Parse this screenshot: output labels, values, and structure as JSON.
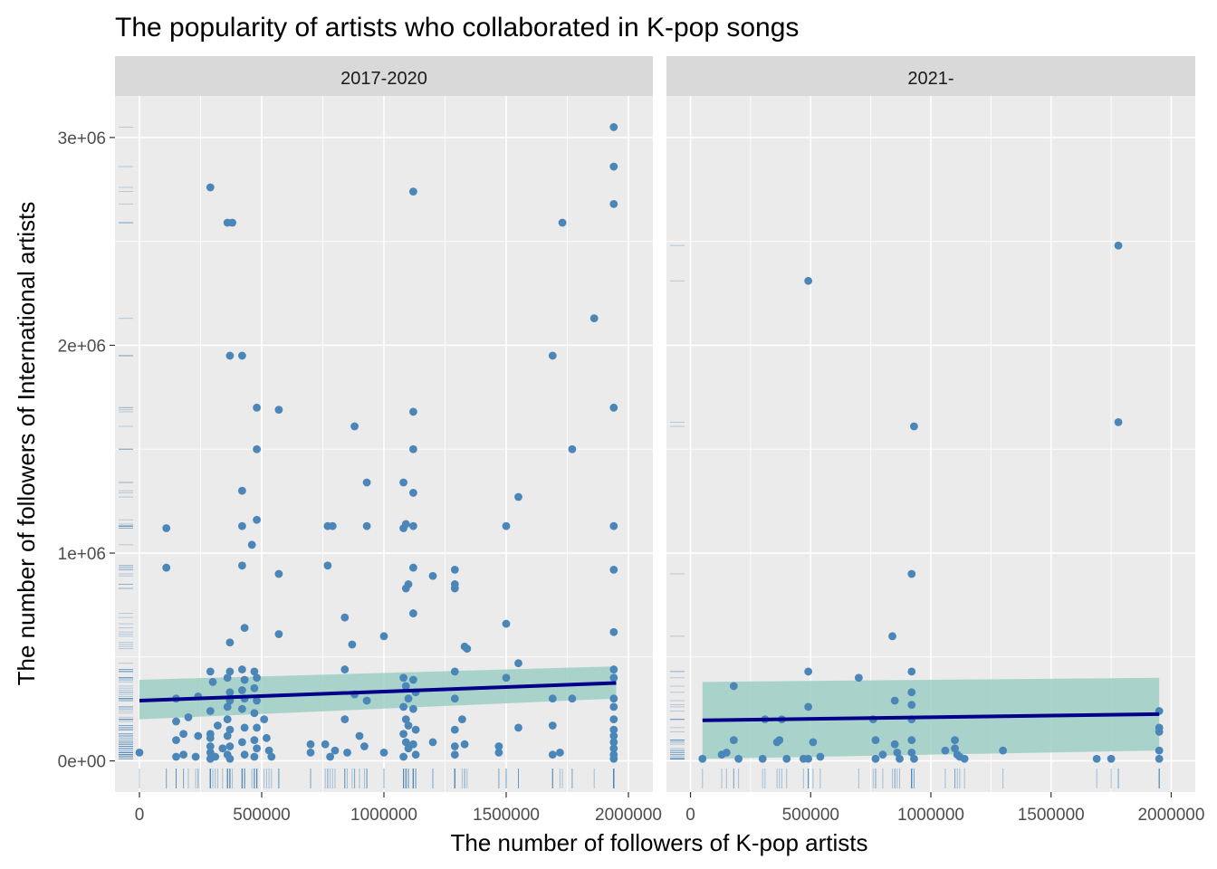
{
  "chart_data": {
    "type": "scatter",
    "title": "The popularity of artists who collaborated in K-pop songs",
    "xlabel": "The number of followers of K-pop artists",
    "ylabel": "The number of followers of International artists",
    "x_ticks": [
      "0",
      "500000",
      "1000000",
      "1500000",
      "2000000"
    ],
    "y_ticks": [
      "0e+00",
      "1e+06",
      "2e+06",
      "3e+06"
    ],
    "xlim": [
      -100000,
      2100000
    ],
    "ylim": [
      -150000,
      3200000
    ],
    "grid": true,
    "marginal_rugs": true,
    "colors": {
      "points": "#4a86b8",
      "trend_line": "#00008b",
      "confidence_band": "#9ecfc4",
      "panel_bg": "#ebebeb",
      "strip_bg": "#d9d9d9",
      "grid": "#ffffff"
    },
    "facets": [
      {
        "name": "2017-2020",
        "trend": {
          "x": [
            0,
            1950000
          ],
          "y": [
            290000,
            375000
          ]
        },
        "band": {
          "x": [
            0,
            1950000
          ],
          "lower": [
            200000,
            300000
          ],
          "upper": [
            390000,
            455000
          ]
        },
        "points": [
          [
            0,
            40000
          ],
          [
            110000,
            1120000
          ],
          [
            110000,
            930000
          ],
          [
            150000,
            20000
          ],
          [
            150000,
            100000
          ],
          [
            150000,
            190000
          ],
          [
            150000,
            300000
          ],
          [
            180000,
            30000
          ],
          [
            180000,
            130000
          ],
          [
            200000,
            210000
          ],
          [
            230000,
            20000
          ],
          [
            240000,
            120000
          ],
          [
            240000,
            310000
          ],
          [
            290000,
            2760000
          ],
          [
            290000,
            430000
          ],
          [
            290000,
            10000
          ],
          [
            290000,
            40000
          ],
          [
            290000,
            70000
          ],
          [
            290000,
            110000
          ],
          [
            290000,
            130000
          ],
          [
            290000,
            240000
          ],
          [
            300000,
            380000
          ],
          [
            310000,
            20000
          ],
          [
            320000,
            170000
          ],
          [
            340000,
            60000
          ],
          [
            360000,
            2590000
          ],
          [
            380000,
            2590000
          ],
          [
            370000,
            1950000
          ],
          [
            370000,
            570000
          ],
          [
            370000,
            430000
          ],
          [
            360000,
            400000
          ],
          [
            370000,
            330000
          ],
          [
            370000,
            290000
          ],
          [
            360000,
            260000
          ],
          [
            360000,
            200000
          ],
          [
            370000,
            150000
          ],
          [
            360000,
            120000
          ],
          [
            370000,
            70000
          ],
          [
            360000,
            30000
          ],
          [
            370000,
            10000
          ],
          [
            420000,
            1950000
          ],
          [
            420000,
            1300000
          ],
          [
            420000,
            1130000
          ],
          [
            420000,
            940000
          ],
          [
            430000,
            640000
          ],
          [
            420000,
            440000
          ],
          [
            430000,
            390000
          ],
          [
            420000,
            340000
          ],
          [
            430000,
            300000
          ],
          [
            420000,
            250000
          ],
          [
            430000,
            160000
          ],
          [
            420000,
            90000
          ],
          [
            430000,
            30000
          ],
          [
            460000,
            1040000
          ],
          [
            480000,
            1700000
          ],
          [
            480000,
            1500000
          ],
          [
            480000,
            1160000
          ],
          [
            470000,
            430000
          ],
          [
            480000,
            400000
          ],
          [
            470000,
            350000
          ],
          [
            480000,
            290000
          ],
          [
            470000,
            230000
          ],
          [
            480000,
            160000
          ],
          [
            470000,
            100000
          ],
          [
            480000,
            60000
          ],
          [
            470000,
            20000
          ],
          [
            570000,
            1690000
          ],
          [
            570000,
            900000
          ],
          [
            570000,
            610000
          ],
          [
            510000,
            200000
          ],
          [
            520000,
            110000
          ],
          [
            530000,
            50000
          ],
          [
            540000,
            20000
          ],
          [
            700000,
            80000
          ],
          [
            700000,
            40000
          ],
          [
            770000,
            940000
          ],
          [
            770000,
            1130000
          ],
          [
            790000,
            1130000
          ],
          [
            760000,
            80000
          ],
          [
            780000,
            20000
          ],
          [
            800000,
            50000
          ],
          [
            840000,
            690000
          ],
          [
            840000,
            440000
          ],
          [
            840000,
            200000
          ],
          [
            850000,
            40000
          ],
          [
            870000,
            560000
          ],
          [
            880000,
            1610000
          ],
          [
            880000,
            320000
          ],
          [
            900000,
            120000
          ],
          [
            930000,
            1340000
          ],
          [
            930000,
            1130000
          ],
          [
            930000,
            290000
          ],
          [
            920000,
            70000
          ],
          [
            1000000,
            600000
          ],
          [
            1000000,
            40000
          ],
          [
            1080000,
            1340000
          ],
          [
            1080000,
            1120000
          ],
          [
            1090000,
            1140000
          ],
          [
            1090000,
            830000
          ],
          [
            1100000,
            850000
          ],
          [
            1120000,
            2740000
          ],
          [
            1120000,
            1680000
          ],
          [
            1120000,
            1500000
          ],
          [
            1120000,
            1290000
          ],
          [
            1120000,
            1130000
          ],
          [
            1120000,
            930000
          ],
          [
            1120000,
            710000
          ],
          [
            1080000,
            400000
          ],
          [
            1090000,
            360000
          ],
          [
            1100000,
            300000
          ],
          [
            1080000,
            260000
          ],
          [
            1090000,
            200000
          ],
          [
            1100000,
            170000
          ],
          [
            1080000,
            130000
          ],
          [
            1090000,
            90000
          ],
          [
            1100000,
            60000
          ],
          [
            1080000,
            20000
          ],
          [
            1120000,
            390000
          ],
          [
            1130000,
            330000
          ],
          [
            1120000,
            250000
          ],
          [
            1130000,
            150000
          ],
          [
            1120000,
            80000
          ],
          [
            1130000,
            30000
          ],
          [
            1200000,
            890000
          ],
          [
            1200000,
            90000
          ],
          [
            1290000,
            920000
          ],
          [
            1290000,
            850000
          ],
          [
            1290000,
            830000
          ],
          [
            1290000,
            430000
          ],
          [
            1290000,
            300000
          ],
          [
            1290000,
            150000
          ],
          [
            1290000,
            70000
          ],
          [
            1290000,
            30000
          ],
          [
            1330000,
            550000
          ],
          [
            1340000,
            540000
          ],
          [
            1320000,
            200000
          ],
          [
            1330000,
            80000
          ],
          [
            1470000,
            70000
          ],
          [
            1470000,
            40000
          ],
          [
            1500000,
            1130000
          ],
          [
            1500000,
            660000
          ],
          [
            1500000,
            400000
          ],
          [
            1550000,
            1270000
          ],
          [
            1550000,
            470000
          ],
          [
            1550000,
            160000
          ],
          [
            1690000,
            1950000
          ],
          [
            1690000,
            300000
          ],
          [
            1690000,
            170000
          ],
          [
            1690000,
            30000
          ],
          [
            1730000,
            2590000
          ],
          [
            1720000,
            40000
          ],
          [
            1770000,
            1500000
          ],
          [
            1770000,
            300000
          ],
          [
            1860000,
            2130000
          ],
          [
            1940000,
            3050000
          ],
          [
            1940000,
            2860000
          ],
          [
            1940000,
            2680000
          ],
          [
            1940000,
            1700000
          ],
          [
            1940000,
            1130000
          ],
          [
            1940000,
            920000
          ],
          [
            1940000,
            620000
          ],
          [
            1940000,
            440000
          ],
          [
            1940000,
            400000
          ],
          [
            1940000,
            300000
          ],
          [
            1940000,
            260000
          ],
          [
            1940000,
            200000
          ],
          [
            1940000,
            150000
          ],
          [
            1940000,
            120000
          ],
          [
            1940000,
            90000
          ],
          [
            1940000,
            60000
          ],
          [
            1940000,
            30000
          ],
          [
            1940000,
            10000
          ]
        ]
      },
      {
        "name": "2021-",
        "trend": {
          "x": [
            50000,
            1950000
          ],
          "y": [
            195000,
            225000
          ]
        },
        "band": {
          "x": [
            50000,
            1950000
          ],
          "lower": [
            10000,
            50000
          ],
          "upper": [
            380000,
            400000
          ]
        },
        "points": [
          [
            50000,
            10000
          ],
          [
            130000,
            30000
          ],
          [
            150000,
            40000
          ],
          [
            180000,
            360000
          ],
          [
            180000,
            100000
          ],
          [
            200000,
            10000
          ],
          [
            300000,
            10000
          ],
          [
            310000,
            200000
          ],
          [
            360000,
            90000
          ],
          [
            370000,
            100000
          ],
          [
            380000,
            200000
          ],
          [
            400000,
            10000
          ],
          [
            470000,
            10000
          ],
          [
            490000,
            2310000
          ],
          [
            490000,
            430000
          ],
          [
            490000,
            260000
          ],
          [
            490000,
            10000
          ],
          [
            510000,
            90000
          ],
          [
            540000,
            20000
          ],
          [
            700000,
            400000
          ],
          [
            760000,
            200000
          ],
          [
            770000,
            100000
          ],
          [
            770000,
            10000
          ],
          [
            800000,
            30000
          ],
          [
            840000,
            600000
          ],
          [
            850000,
            290000
          ],
          [
            850000,
            80000
          ],
          [
            860000,
            40000
          ],
          [
            870000,
            10000
          ],
          [
            920000,
            900000
          ],
          [
            930000,
            1610000
          ],
          [
            920000,
            430000
          ],
          [
            920000,
            330000
          ],
          [
            920000,
            270000
          ],
          [
            920000,
            200000
          ],
          [
            920000,
            100000
          ],
          [
            920000,
            40000
          ],
          [
            930000,
            10000
          ],
          [
            1060000,
            50000
          ],
          [
            1100000,
            100000
          ],
          [
            1100000,
            60000
          ],
          [
            1110000,
            30000
          ],
          [
            1120000,
            20000
          ],
          [
            1140000,
            10000
          ],
          [
            1300000,
            50000
          ],
          [
            1690000,
            10000
          ],
          [
            1750000,
            10000
          ],
          [
            1780000,
            2480000
          ],
          [
            1780000,
            1630000
          ],
          [
            1950000,
            240000
          ],
          [
            1950000,
            160000
          ],
          [
            1950000,
            140000
          ],
          [
            1950000,
            50000
          ],
          [
            1950000,
            10000
          ]
        ]
      }
    ]
  }
}
